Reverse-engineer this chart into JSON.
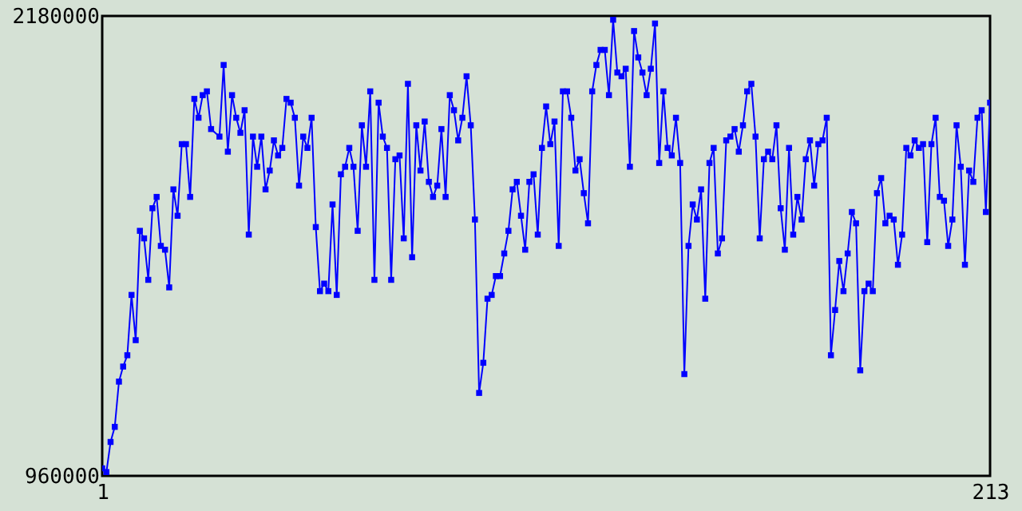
{
  "chart_data": {
    "type": "line",
    "marker": "square",
    "grid": false,
    "xlim": [
      1,
      213
    ],
    "xticks": [
      1,
      213
    ],
    "ylim": [
      960000,
      2180000
    ],
    "yticks": [
      960000,
      2180000
    ],
    "series": [
      {
        "color": "#0000ff",
        "x": [
          1,
          2,
          3,
          4,
          5,
          6,
          7,
          8,
          9,
          10,
          11,
          12,
          13,
          14,
          15,
          16,
          17,
          18,
          19,
          20,
          21,
          22,
          23,
          24,
          25,
          26,
          27,
          29,
          30,
          31,
          32,
          33,
          34,
          35,
          36,
          37,
          38,
          39,
          40,
          41,
          42,
          43,
          44,
          45,
          46,
          47,
          48,
          49,
          50,
          51,
          52,
          53,
          54,
          55,
          56,
          57,
          58,
          59,
          60,
          61,
          62,
          63,
          64,
          65,
          66,
          67,
          68,
          69,
          70,
          71,
          72,
          73,
          74,
          75,
          76,
          77,
          78,
          79,
          80,
          81,
          82,
          83,
          84,
          85,
          86,
          87,
          88,
          89,
          90,
          91,
          92,
          93,
          94,
          95,
          96,
          97,
          98,
          99,
          100,
          101,
          102,
          103,
          104,
          105,
          106,
          107,
          108,
          109,
          110,
          111,
          112,
          113,
          114,
          115,
          116,
          117,
          118,
          119,
          120,
          121,
          122,
          123,
          124,
          125,
          126,
          127,
          128,
          129,
          130,
          131,
          132,
          133,
          134,
          135,
          136,
          137,
          138,
          139,
          140,
          141,
          142,
          143,
          144,
          145,
          146,
          147,
          148,
          149,
          150,
          151,
          152,
          153,
          154,
          155,
          156,
          157,
          158,
          159,
          160,
          161,
          162,
          163,
          164,
          165,
          166,
          167,
          168,
          169,
          170,
          171,
          172,
          173,
          174,
          175,
          176,
          177,
          178,
          179,
          180,
          181,
          182,
          183,
          184,
          185,
          186,
          187,
          188,
          189,
          190,
          191,
          192,
          193,
          194,
          195,
          196,
          197,
          198,
          199,
          200,
          201,
          202,
          203,
          204,
          205,
          206,
          207,
          208,
          209,
          210,
          211,
          212,
          213
        ],
        "values": [
          980000,
          970000,
          1050000,
          1090000,
          1210000,
          1250000,
          1280000,
          1440000,
          1320000,
          1610000,
          1590000,
          1480000,
          1670000,
          1700000,
          1570000,
          1560000,
          1460000,
          1720000,
          1650000,
          1840000,
          1840000,
          1700000,
          1960000,
          1910000,
          1970000,
          1980000,
          1880000,
          1860000,
          2050000,
          1820000,
          1970000,
          1910000,
          1870000,
          1930000,
          1600000,
          1860000,
          1780000,
          1860000,
          1720000,
          1770000,
          1850000,
          1810000,
          1830000,
          1960000,
          1950000,
          1910000,
          1730000,
          1860000,
          1830000,
          1910000,
          1620000,
          1450000,
          1470000,
          1450000,
          1680000,
          1440000,
          1760000,
          1780000,
          1830000,
          1780000,
          1610000,
          1890000,
          1780000,
          1980000,
          1480000,
          1950000,
          1860000,
          1830000,
          1480000,
          1800000,
          1810000,
          1590000,
          2000000,
          1540000,
          1890000,
          1770000,
          1900000,
          1740000,
          1700000,
          1730000,
          1880000,
          1700000,
          1970000,
          1930000,
          1850000,
          1910000,
          2020000,
          1890000,
          1640000,
          1180000,
          1260000,
          1430000,
          1440000,
          1490000,
          1490000,
          1550000,
          1610000,
          1720000,
          1740000,
          1650000,
          1560000,
          1740000,
          1760000,
          1600000,
          1830000,
          1940000,
          1840000,
          1900000,
          1570000,
          1980000,
          1980000,
          1910000,
          1770000,
          1800000,
          1710000,
          1630000,
          1980000,
          2050000,
          2090000,
          2090000,
          1970000,
          2170000,
          2030000,
          2020000,
          2040000,
          1780000,
          2140000,
          2070000,
          2030000,
          1970000,
          2040000,
          2160000,
          1790000,
          1980000,
          1830000,
          1810000,
          1910000,
          1790000,
          1230000,
          1570000,
          1680000,
          1640000,
          1720000,
          1430000,
          1790000,
          1830000,
          1550000,
          1590000,
          1850000,
          1860000,
          1880000,
          1820000,
          1890000,
          1980000,
          2000000,
          1860000,
          1590000,
          1800000,
          1820000,
          1800000,
          1890000,
          1670000,
          1560000,
          1830000,
          1600000,
          1700000,
          1640000,
          1800000,
          1850000,
          1730000,
          1840000,
          1850000,
          1910000,
          1280000,
          1400000,
          1530000,
          1450000,
          1550000,
          1660000,
          1630000,
          1240000,
          1450000,
          1470000,
          1450000,
          1710000,
          1750000,
          1630000,
          1650000,
          1640000,
          1520000,
          1600000,
          1830000,
          1810000,
          1850000,
          1830000,
          1840000,
          1580000,
          1840000,
          1910000,
          1700000,
          1690000,
          1570000,
          1640000,
          1890000,
          1780000,
          1520000,
          1770000,
          1740000,
          1910000,
          1930000,
          1660000,
          1950000
        ]
      }
    ]
  }
}
